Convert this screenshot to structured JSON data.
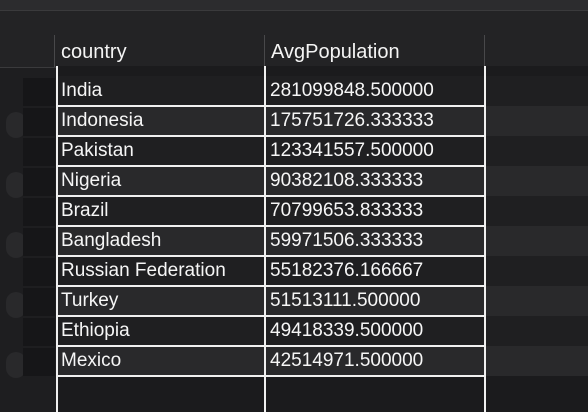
{
  "table": {
    "columns": [
      "country",
      "AvgPopulation"
    ],
    "rows": [
      {
        "country": "India",
        "avg": "281099848.500000"
      },
      {
        "country": "Indonesia",
        "avg": "175751726.333333"
      },
      {
        "country": "Pakistan",
        "avg": "123341557.500000"
      },
      {
        "country": "Nigeria",
        "avg": "90382108.333333"
      },
      {
        "country": "Brazil",
        "avg": "70799653.833333"
      },
      {
        "country": "Bangladesh",
        "avg": "59971506.333333"
      },
      {
        "country": "Russian Federation",
        "avg": "55182376.166667"
      },
      {
        "country": "Turkey",
        "avg": "51513111.500000"
      },
      {
        "country": "Ethiopia",
        "avg": "49418339.500000"
      },
      {
        "country": "Mexico",
        "avg": "42514971.500000"
      }
    ]
  }
}
